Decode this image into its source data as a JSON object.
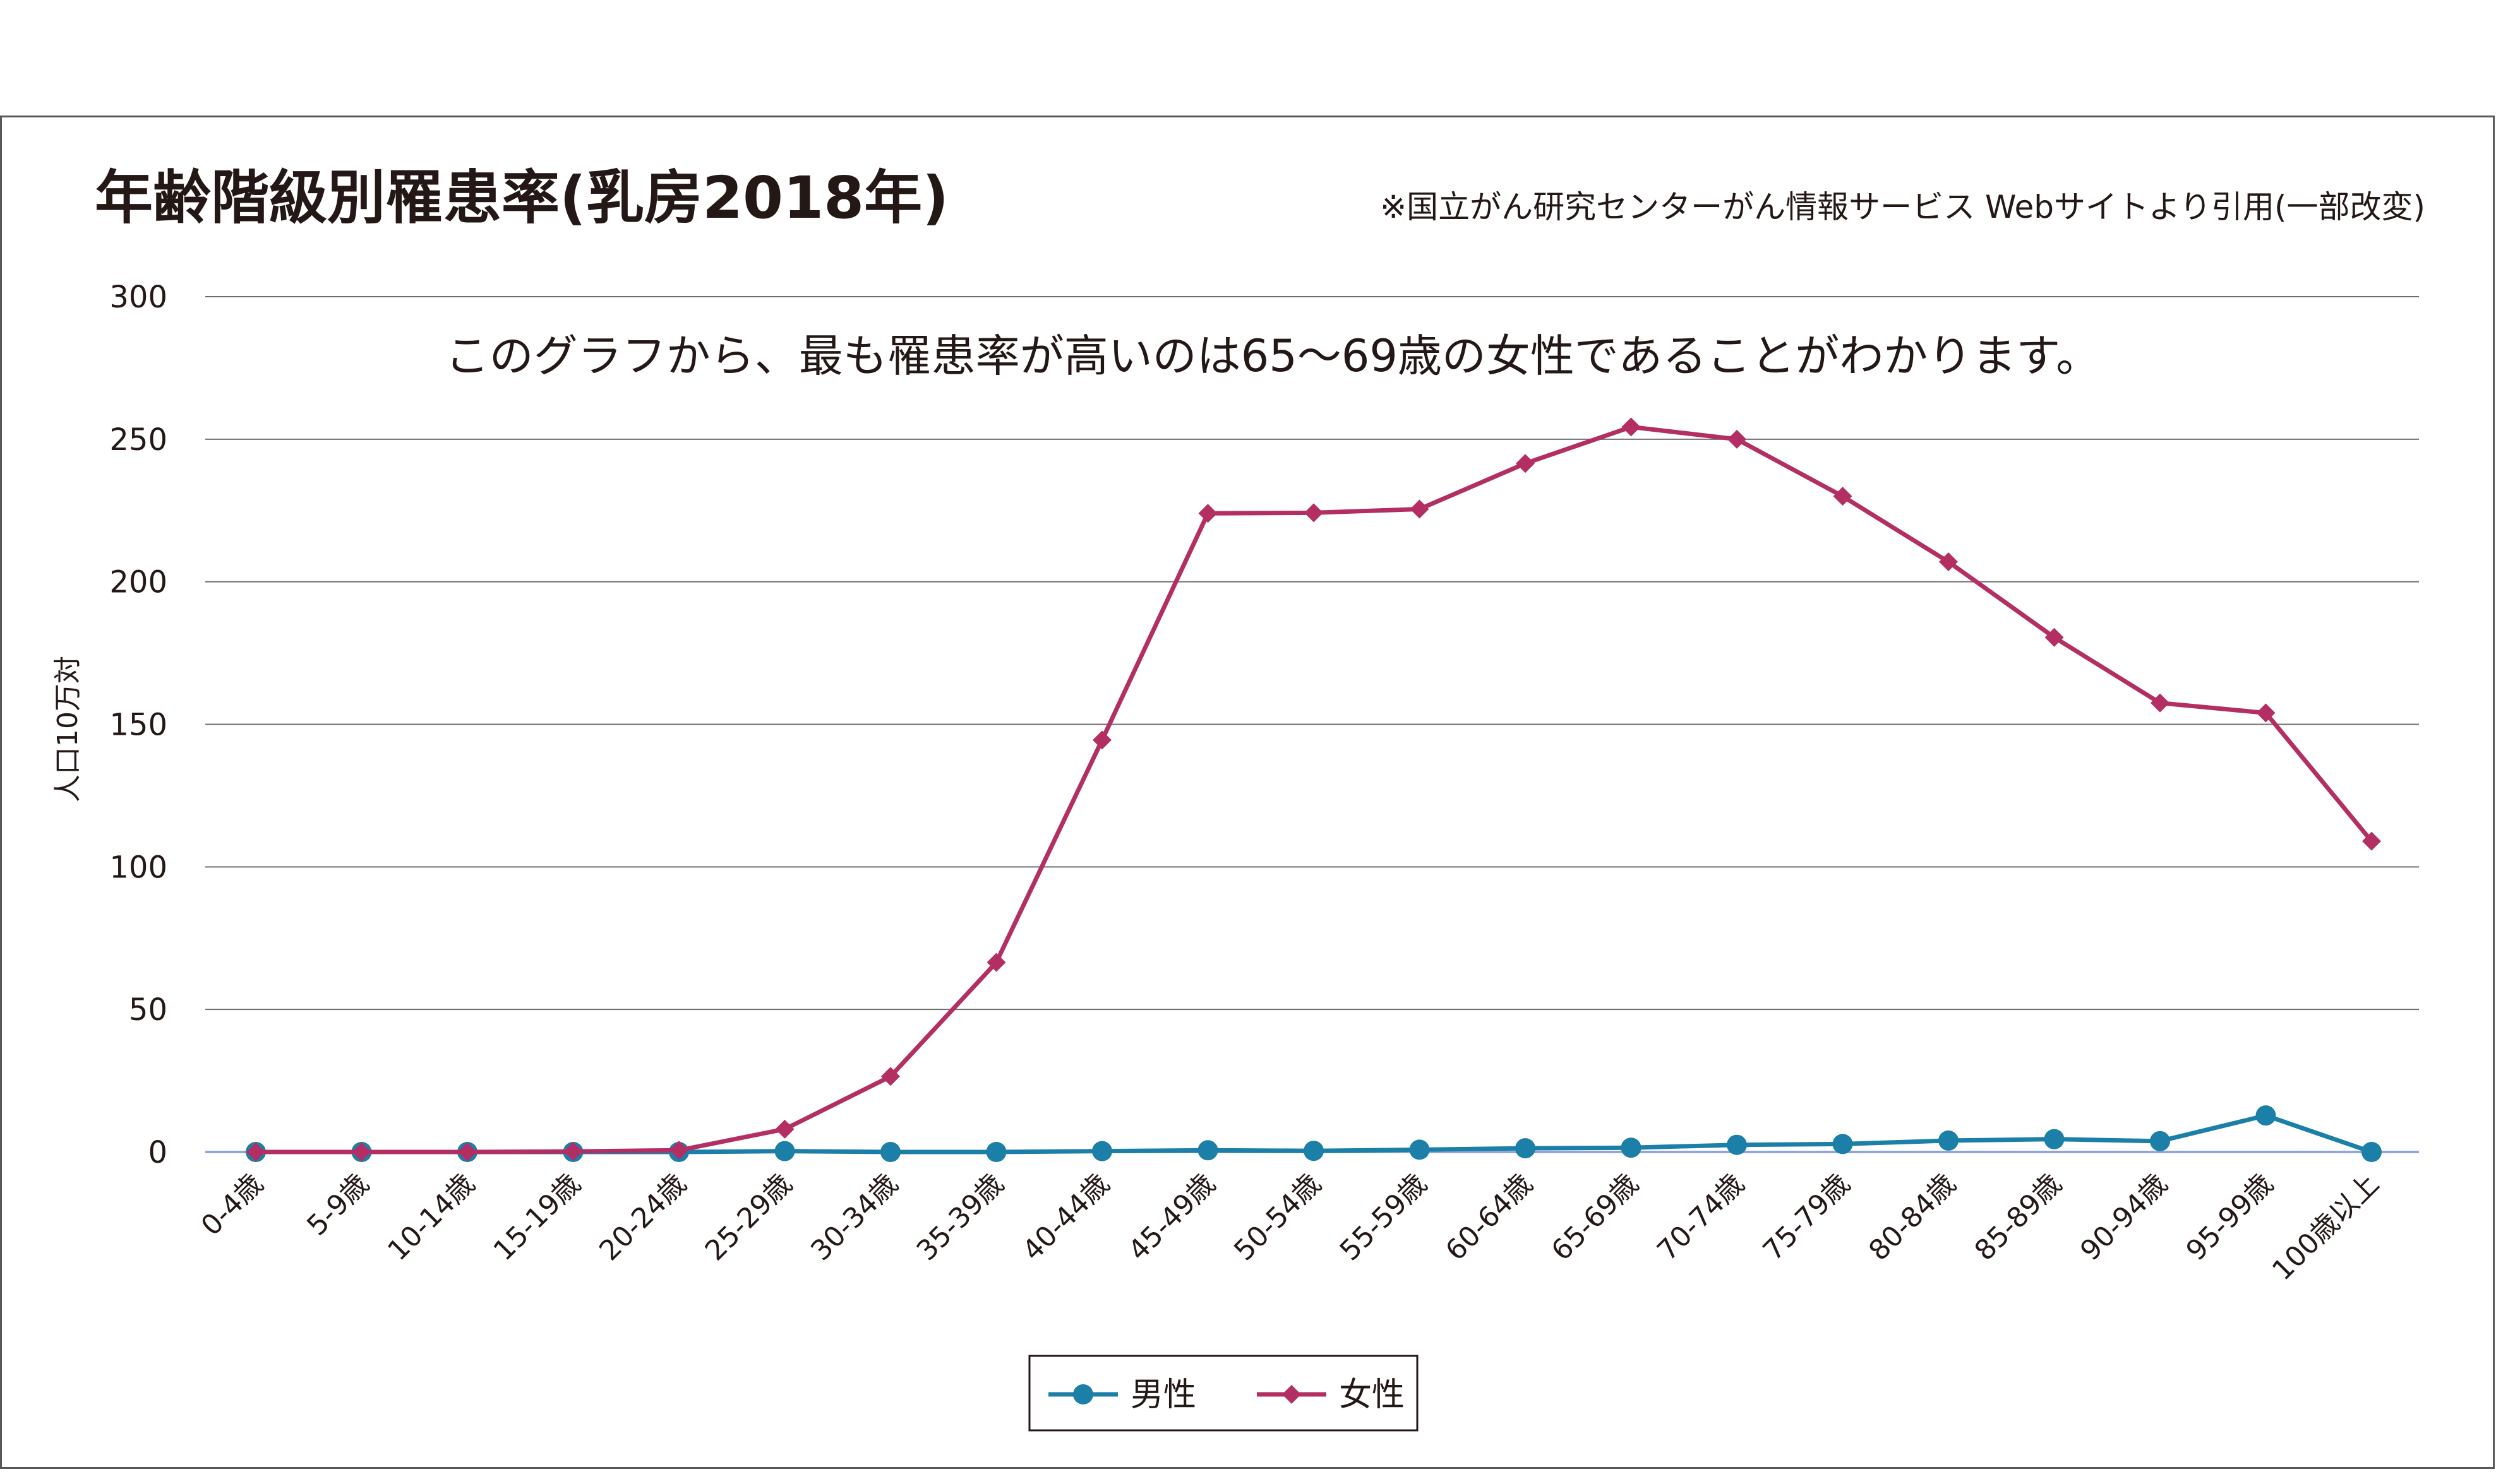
{
  "chart_data": {
    "type": "line",
    "title": "年齢階級別罹患率(乳房2018年)",
    "source_note": "※国立がん研究センターがん情報サービス Webサイトより引用(一部改変)",
    "annotation": "このグラフから、最も罹患率が高いのは65〜69歳の女性であることがわかります。",
    "ylabel": "人口10万対",
    "xlabel": "",
    "ylim": [
      0,
      300
    ],
    "yticks": [
      0,
      50,
      100,
      150,
      200,
      250,
      300
    ],
    "grid": true,
    "legend_position": "bottom-center",
    "categories": [
      "0-4歳",
      "5-9歳",
      "10-14歳",
      "15-19歳",
      "20-24歳",
      "25-29歳",
      "30-34歳",
      "35-39歳",
      "40-44歳",
      "45-49歳",
      "50-54歳",
      "55-59歳",
      "60-64歳",
      "65-69歳",
      "70-74歳",
      "75-79歳",
      "80-84歳",
      "85-89歳",
      "90-94歳",
      "95-99歳",
      "100歳以上"
    ],
    "series": [
      {
        "name": "男性",
        "color": "#1b7fa7",
        "marker": "circle",
        "values": [
          0,
          0,
          0,
          0,
          0,
          0.3,
          0,
          0,
          0.3,
          0.6,
          0.4,
          0.8,
          1.3,
          1.5,
          2.5,
          2.8,
          4.0,
          4.5,
          3.8,
          12.8,
          0
        ]
      },
      {
        "name": "女性",
        "color": "#b32f63",
        "marker": "diamond",
        "values": [
          0,
          0,
          0,
          0.2,
          0.6,
          8.0,
          26.5,
          66.5,
          144.5,
          224.0,
          224.2,
          225.5,
          241.5,
          254.3,
          250.0,
          230.0,
          207.0,
          180.5,
          157.5,
          154.0,
          109.0
        ]
      }
    ]
  }
}
